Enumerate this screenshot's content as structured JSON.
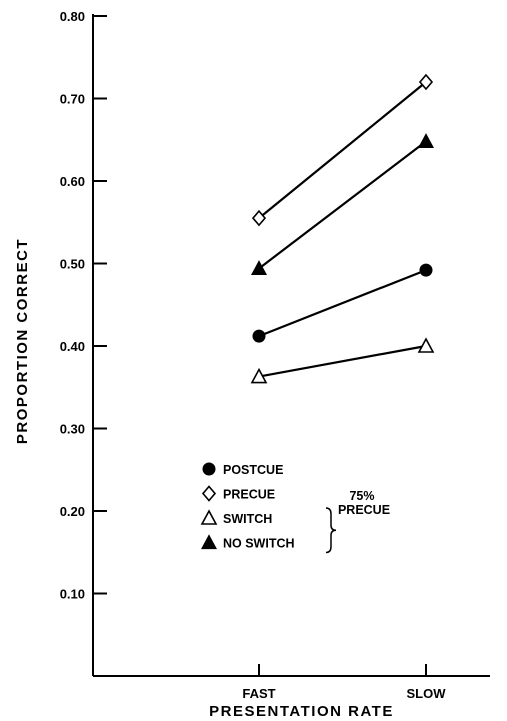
{
  "chart_data": {
    "type": "line",
    "categories": [
      "FAST",
      "SLOW"
    ],
    "xlabel": "PRESENTATION RATE",
    "ylabel": "PROPORTION CORRECT",
    "ylim": [
      0,
      0.8
    ],
    "yticks": [
      "0.10",
      "0.20",
      "0.30",
      "0.40",
      "0.50",
      "0.60",
      "0.70",
      "0.80"
    ],
    "grid": false,
    "legend_position": "bottom-center",
    "series": [
      {
        "name": "POSTCUE",
        "marker": "filled-circle",
        "values": [
          0.412,
          0.492
        ]
      },
      {
        "name": "PRECUE",
        "marker": "open-diamond",
        "values": [
          0.555,
          0.72
        ]
      },
      {
        "name": "SWITCH",
        "marker": "open-triangle",
        "values": [
          0.363,
          0.4
        ]
      },
      {
        "name": "NO SWITCH",
        "marker": "filled-triangle",
        "values": [
          0.494,
          0.648
        ]
      }
    ],
    "legend_group": {
      "line1": "75%",
      "line2": "PRECUE",
      "members": [
        "SWITCH",
        "NO SWITCH"
      ]
    }
  }
}
